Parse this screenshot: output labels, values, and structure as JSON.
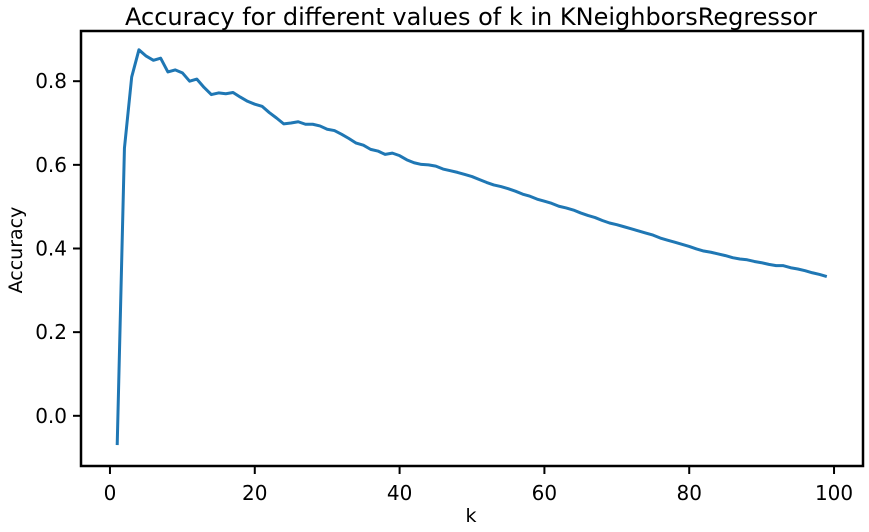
{
  "chart_data": {
    "type": "line",
    "title": "Accuracy for different values of k in KNeighborsRegressor",
    "xlabel": "k",
    "ylabel": "Accuracy",
    "xlim": [
      -4,
      104
    ],
    "ylim": [
      -0.12,
      0.92
    ],
    "xticks": [
      0,
      20,
      40,
      60,
      80,
      100
    ],
    "yticks": [
      0.0,
      0.2,
      0.4,
      0.6,
      0.8
    ],
    "xtick_labels": [
      "0",
      "20",
      "40",
      "60",
      "80",
      "100"
    ],
    "ytick_labels": [
      "0.0",
      "0.2",
      "0.4",
      "0.6",
      "0.8"
    ],
    "grid": false,
    "line_color": "#1f77b4",
    "x": [
      1,
      2,
      3,
      4,
      5,
      6,
      7,
      8,
      9,
      10,
      11,
      12,
      13,
      14,
      15,
      16,
      17,
      18,
      19,
      20,
      21,
      22,
      23,
      24,
      25,
      26,
      27,
      28,
      29,
      30,
      31,
      32,
      33,
      34,
      35,
      36,
      37,
      38,
      39,
      40,
      41,
      42,
      43,
      44,
      45,
      46,
      47,
      48,
      49,
      50,
      51,
      52,
      53,
      54,
      55,
      56,
      57,
      58,
      59,
      60,
      61,
      62,
      63,
      64,
      65,
      66,
      67,
      68,
      69,
      70,
      71,
      72,
      73,
      74,
      75,
      76,
      77,
      78,
      79,
      80,
      81,
      82,
      83,
      84,
      85,
      86,
      87,
      88,
      89,
      90,
      91,
      92,
      93,
      94,
      95,
      96,
      97,
      98,
      99
    ],
    "y": [
      -0.07,
      0.64,
      0.81,
      0.875,
      0.86,
      0.85,
      0.855,
      0.822,
      0.827,
      0.82,
      0.8,
      0.805,
      0.785,
      0.768,
      0.772,
      0.77,
      0.773,
      0.762,
      0.752,
      0.745,
      0.74,
      0.725,
      0.712,
      0.698,
      0.7,
      0.703,
      0.697,
      0.697,
      0.693,
      0.685,
      0.682,
      0.673,
      0.663,
      0.652,
      0.647,
      0.637,
      0.633,
      0.625,
      0.628,
      0.622,
      0.612,
      0.605,
      0.601,
      0.6,
      0.597,
      0.59,
      0.586,
      0.582,
      0.577,
      0.572,
      0.565,
      0.558,
      0.552,
      0.548,
      0.543,
      0.537,
      0.53,
      0.525,
      0.518,
      0.513,
      0.508,
      0.501,
      0.497,
      0.492,
      0.485,
      0.479,
      0.474,
      0.467,
      0.461,
      0.457,
      0.452,
      0.447,
      0.442,
      0.437,
      0.432,
      0.425,
      0.42,
      0.415,
      0.41,
      0.405,
      0.399,
      0.394,
      0.391,
      0.387,
      0.383,
      0.378,
      0.375,
      0.373,
      0.369,
      0.366,
      0.362,
      0.359,
      0.359,
      0.354,
      0.351,
      0.347,
      0.342,
      0.338,
      0.333
    ]
  }
}
